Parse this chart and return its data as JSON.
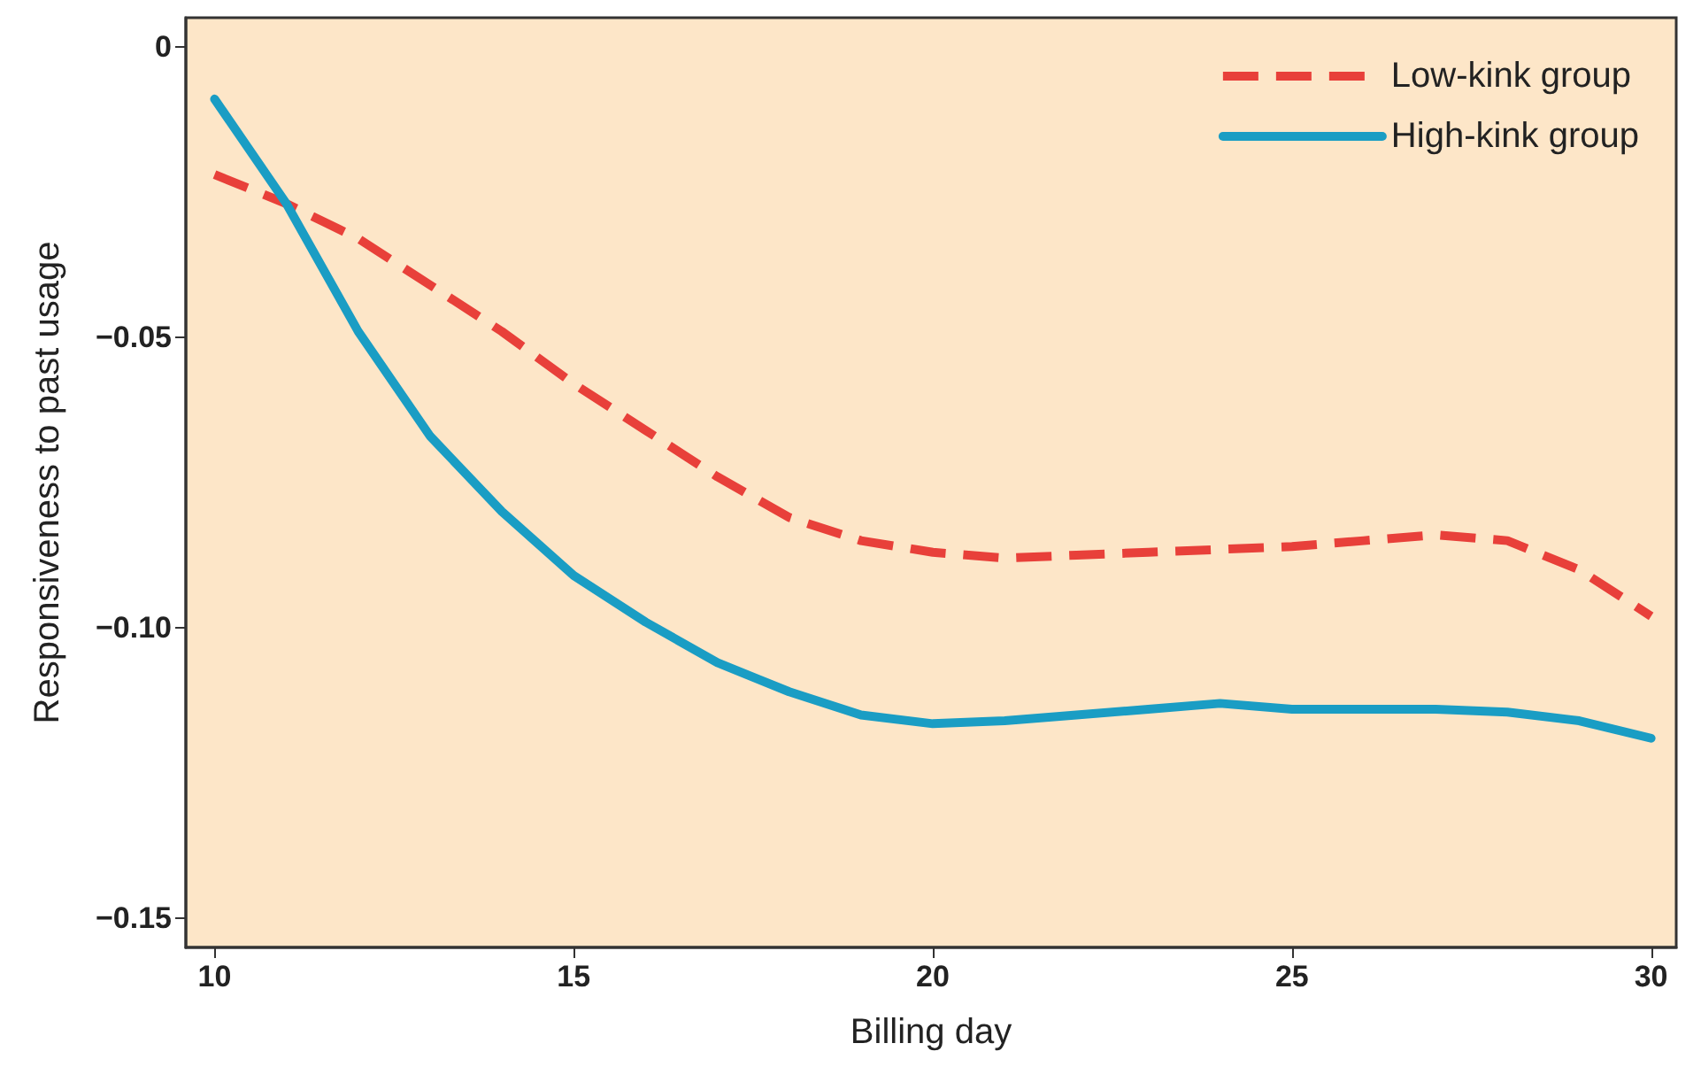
{
  "chart_data": {
    "type": "line",
    "xlabel": "Billing day",
    "ylabel": "Responsiveness to past usage",
    "x": [
      10,
      11,
      12,
      13,
      14,
      15,
      16,
      17,
      18,
      19,
      20,
      21,
      22,
      23,
      24,
      25,
      26,
      27,
      28,
      29,
      30
    ],
    "series": [
      {
        "name": "Low-kink group",
        "color": "#e8403a",
        "line_style": "dashed",
        "values": [
          -0.022,
          -0.027,
          -0.033,
          -0.041,
          -0.049,
          -0.058,
          -0.066,
          -0.074,
          -0.081,
          -0.085,
          -0.087,
          -0.088,
          -0.0875,
          -0.087,
          -0.0865,
          -0.086,
          -0.085,
          -0.084,
          -0.085,
          -0.09,
          -0.098
        ]
      },
      {
        "name": "High-kink group",
        "color": "#1a9dc4",
        "line_style": "solid",
        "values": [
          -0.009,
          -0.027,
          -0.049,
          -0.067,
          -0.08,
          -0.091,
          -0.099,
          -0.106,
          -0.111,
          -0.115,
          -0.1165,
          -0.116,
          -0.115,
          -0.114,
          -0.113,
          -0.114,
          -0.114,
          -0.114,
          -0.1145,
          -0.116,
          -0.119
        ]
      }
    ],
    "xlim": [
      9.6,
      30.35
    ],
    "ylim": [
      -0.155,
      0.005
    ],
    "xticks": [
      10,
      15,
      20,
      25,
      30
    ],
    "yticks": [
      0,
      {
        "value": -0.05,
        "label": "−0.05"
      },
      {
        "value": -0.1,
        "label": "−0.10"
      },
      {
        "value": -0.15,
        "label": "−0.15"
      }
    ],
    "grid": false,
    "legend": "top right",
    "marker": "none"
  }
}
